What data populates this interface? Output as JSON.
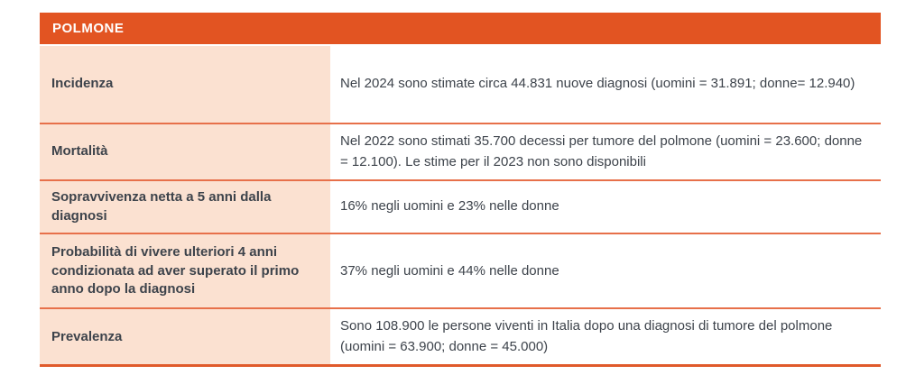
{
  "table": {
    "title": "POLMONE",
    "rows": [
      {
        "label": "Incidenza",
        "value": "Nel 2024 sono stimate circa 44.831 nuove diagnosi (uomini = 31.891; donne= 12.940)"
      },
      {
        "label": "Mortalità",
        "value": "Nel 2022 sono stimati 35.700 decessi per tumore del polmone (uomini = 23.600; donne = 12.100). Le stime per il 2023 non sono disponibili"
      },
      {
        "label": "Sopravvivenza netta a 5 anni dalla diagnosi",
        "value": "16% negli uomini e 23% nelle donne"
      },
      {
        "label": "Probabilità di vivere ulteriori 4 anni condizionata ad aver superato il primo anno dopo la diagnosi",
        "value": "37% negli uomini e 44% nelle donne"
      },
      {
        "label": "Prevalenza",
        "value": "Sono 108.900 le persone viventi in Italia dopo una diagnosi di tumore del polmone (uomini = 63.900; donne = 45.000)"
      }
    ],
    "colors": {
      "accent": "#e25422",
      "row_label_bg": "#fbe1d1",
      "divider": "#e7704a",
      "bottom_border": "#e05a2b",
      "text": "#3d434b",
      "header_text": "#ffffff",
      "value_bg": "#ffffff"
    }
  }
}
